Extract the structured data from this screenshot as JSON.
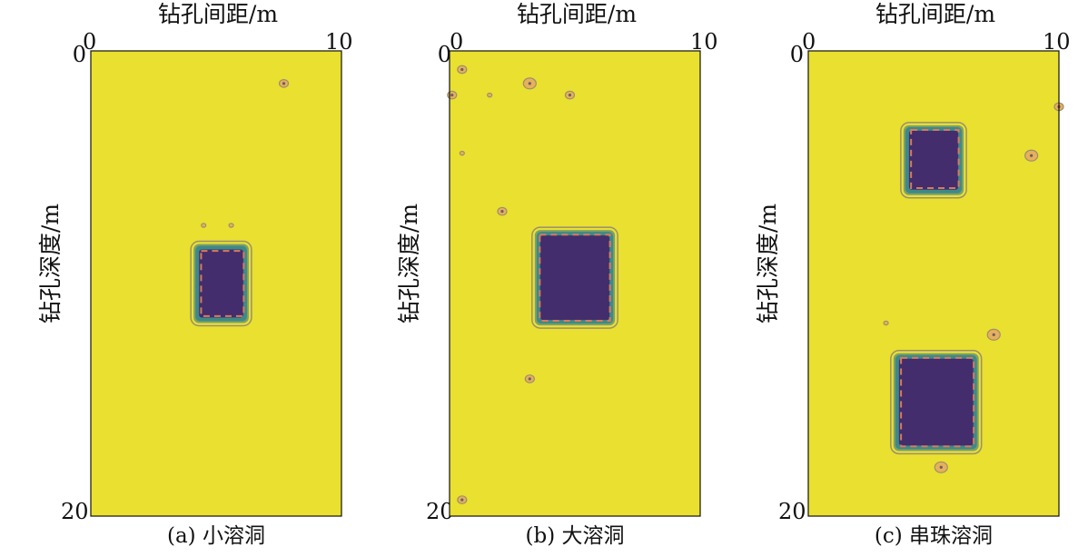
{
  "colors": {
    "background": "#e9e030",
    "cavity": "#432d6d",
    "cavity_edge": "#3d8a86",
    "outline": "#d87a5c",
    "contour": "#9b8f6e",
    "axis": "#111111"
  },
  "chart_data": [
    {
      "type": "heatmap",
      "xlabel": "钻孔间距/m",
      "ylabel": "钻孔深度/m",
      "xlim": [
        0,
        10
      ],
      "ylim": [
        0,
        20
      ],
      "x_ticks": [
        "0",
        "10"
      ],
      "y_ticks": [
        "0",
        "20"
      ],
      "caption": "(a) 小溶洞",
      "cavities": [
        {
          "x0": 4.1,
          "x1": 6.3,
          "y0": 8.3,
          "y1": 11.7,
          "true_x0": 4.4,
          "true_x1": 6.1,
          "true_y0": 8.6,
          "true_y1": 11.4
        }
      ],
      "anomalies": [
        {
          "x": 7.7,
          "y": 1.4,
          "size": "small"
        },
        {
          "x": 4.5,
          "y": 7.5,
          "size": "dot"
        },
        {
          "x": 5.6,
          "y": 7.5,
          "size": "dot"
        }
      ]
    },
    {
      "type": "heatmap",
      "xlabel": "钻孔间距/m",
      "ylabel": "钻孔深度/m",
      "xlim": [
        0,
        10
      ],
      "ylim": [
        0,
        20
      ],
      "x_ticks": [
        "0",
        "10"
      ],
      "y_ticks": [
        "0",
        "20"
      ],
      "caption": "(b) 大溶洞",
      "cavities": [
        {
          "x0": 3.4,
          "x1": 6.6,
          "y0": 7.7,
          "y1": 11.8,
          "true_x0": 3.6,
          "true_x1": 6.4,
          "true_y0": 7.9,
          "true_y1": 11.6
        }
      ],
      "anomalies": [
        {
          "x": 0.5,
          "y": 0.8,
          "size": "small"
        },
        {
          "x": 3.2,
          "y": 1.4,
          "size": "medium"
        },
        {
          "x": 0.1,
          "y": 1.9,
          "size": "small"
        },
        {
          "x": 1.6,
          "y": 1.9,
          "size": "dot"
        },
        {
          "x": 4.8,
          "y": 1.9,
          "size": "small"
        },
        {
          "x": 0.5,
          "y": 4.4,
          "size": "dot"
        },
        {
          "x": 2.1,
          "y": 6.9,
          "size": "small"
        },
        {
          "x": 3.2,
          "y": 14.1,
          "size": "small"
        },
        {
          "x": 0.5,
          "y": 19.3,
          "size": "small"
        }
      ]
    },
    {
      "type": "heatmap",
      "xlabel": "钻孔间距/m",
      "ylabel": "钻孔深度/m",
      "xlim": [
        0,
        10
      ],
      "ylim": [
        0,
        20
      ],
      "x_ticks": [
        "0",
        "10"
      ],
      "y_ticks": [
        "0",
        "20"
      ],
      "caption": "(c) 串珠溶洞",
      "cavities": [
        {
          "x0": 3.8,
          "x1": 6.2,
          "y0": 3.2,
          "y1": 6.2,
          "true_x0": 4.1,
          "true_x1": 6.0,
          "true_y0": 3.4,
          "true_y1": 5.9
        },
        {
          "x0": 3.4,
          "x1": 6.8,
          "y0": 13.0,
          "y1": 17.2,
          "true_x0": 3.7,
          "true_x1": 6.6,
          "true_y0": 13.2,
          "true_y1": 17.0
        }
      ],
      "anomalies": [
        {
          "x": 10.0,
          "y": 2.4,
          "size": "small"
        },
        {
          "x": 8.9,
          "y": 4.5,
          "size": "medium"
        },
        {
          "x": 3.1,
          "y": 11.7,
          "size": "dot"
        },
        {
          "x": 7.4,
          "y": 12.2,
          "size": "medium"
        },
        {
          "x": 5.3,
          "y": 17.9,
          "size": "medium"
        }
      ]
    }
  ]
}
